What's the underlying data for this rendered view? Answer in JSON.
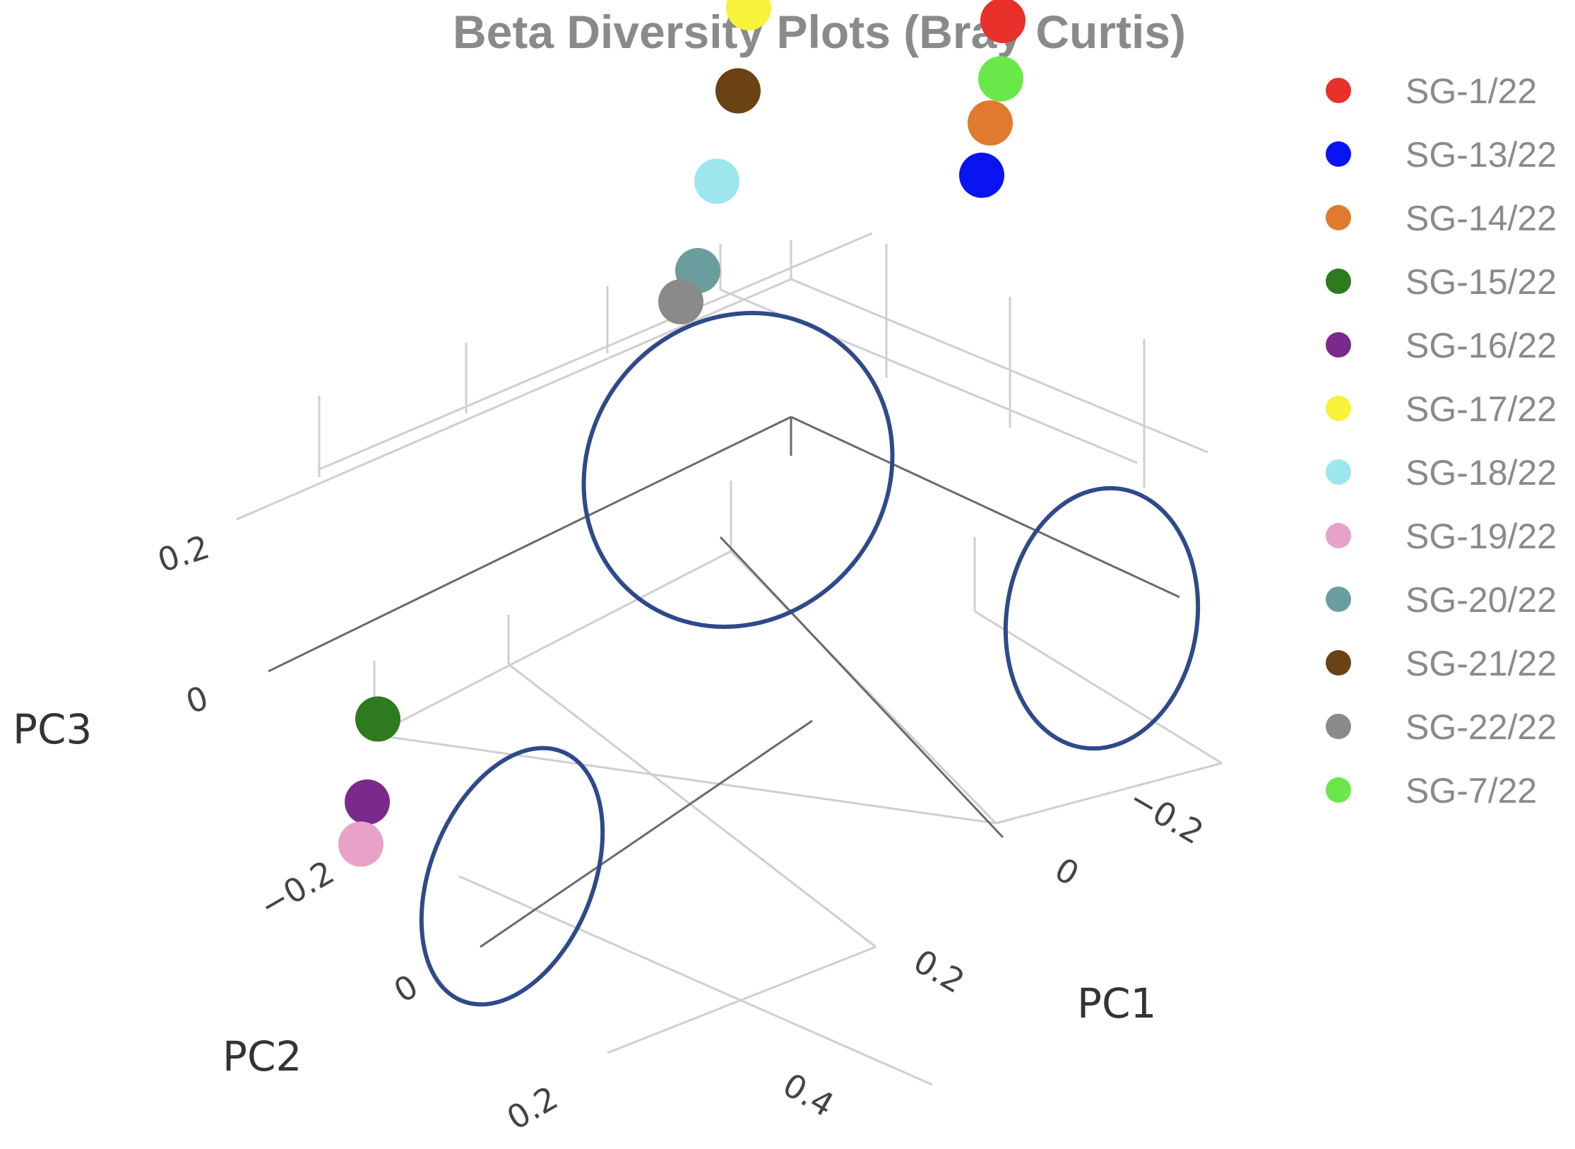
{
  "chart_data": {
    "type": "scatter",
    "subtype": "3d-pcoa",
    "title": "Beta Diversity Plots (Bray Curtis)",
    "axes": {
      "x": {
        "label": "PC1",
        "ticks": [
          "−0.2",
          "0",
          "0.2",
          "0.4"
        ]
      },
      "y": {
        "label": "PC2",
        "ticks": [
          "−0.2",
          "0",
          "0.2"
        ]
      },
      "z": {
        "label": "PC3",
        "ticks": [
          "0",
          "0.2"
        ]
      }
    },
    "legend_position": "right",
    "series": [
      {
        "name": "SG-1/22",
        "color": "#e8312a",
        "pc1": -0.25,
        "pc2": -0.35,
        "pc3": 0.02
      },
      {
        "name": "SG-13/22",
        "color": "#0a14f0",
        "pc1": -0.22,
        "pc2": -0.3,
        "pc3": -0.08
      },
      {
        "name": "SG-14/22",
        "color": "#e07a2e",
        "pc1": -0.23,
        "pc2": -0.31,
        "pc3": -0.04
      },
      {
        "name": "SG-15/22",
        "color": "#2e7a1e",
        "pc1": 0.4,
        "pc2": -0.05,
        "pc3": 0.05
      },
      {
        "name": "SG-16/22",
        "color": "#7a2a8a",
        "pc1": 0.42,
        "pc2": 0.0,
        "pc3": 0.02
      },
      {
        "name": "SG-17/22",
        "color": "#f7f23a",
        "pc1": 0.0,
        "pc2": -0.3,
        "pc3": 0.28
      },
      {
        "name": "SG-18/22",
        "color": "#9ee6ee",
        "pc1": 0.05,
        "pc2": -0.2,
        "pc3": 0.22
      },
      {
        "name": "SG-19/22",
        "color": "#e8a2c8",
        "pc1": 0.43,
        "pc2": 0.02,
        "pc3": 0.0
      },
      {
        "name": "SG-20/22",
        "color": "#6a9e9e",
        "pc1": 0.08,
        "pc2": -0.14,
        "pc3": 0.2
      },
      {
        "name": "SG-21/22",
        "color": "#6a4214",
        "pc1": 0.02,
        "pc2": -0.25,
        "pc3": 0.25
      },
      {
        "name": "SG-22/22",
        "color": "#8a8a8a",
        "pc1": 0.1,
        "pc2": -0.12,
        "pc3": 0.2
      },
      {
        "name": "SG-7/22",
        "color": "#6ae84a",
        "pc1": -0.24,
        "pc2": -0.31,
        "pc3": 0.0
      }
    ],
    "legend_order": [
      "SG-1/22",
      "SG-13/22",
      "SG-14/22",
      "SG-15/22",
      "SG-16/22",
      "SG-17/22",
      "SG-18/22",
      "SG-19/22",
      "SG-20/22",
      "SG-21/22",
      "SG-22/22",
      "SG-7/22"
    ]
  }
}
